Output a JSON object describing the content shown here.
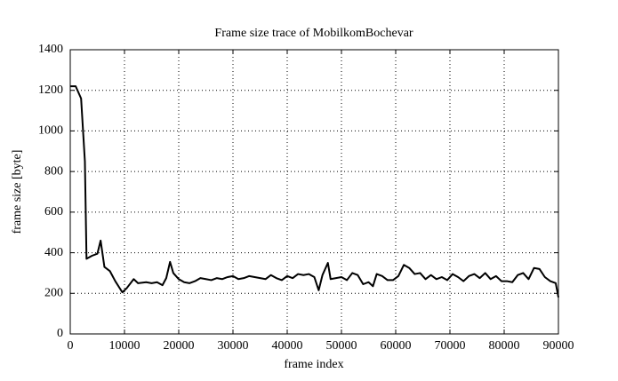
{
  "chart_data": {
    "type": "line",
    "title": "Frame size trace of MobilkomBochevar",
    "xlabel": "frame index",
    "ylabel": "frame size [byte]",
    "x": [
      0,
      1000,
      2000,
      2700,
      3000,
      4000,
      5000,
      5600,
      6300,
      7300,
      8300,
      9600,
      10400,
      11700,
      12500,
      14000,
      15000,
      16000,
      17000,
      17700,
      18400,
      19000,
      20000,
      21000,
      22000,
      23000,
      24000,
      25000,
      26000,
      27000,
      28000,
      29000,
      30000,
      31000,
      32000,
      33000,
      34000,
      35000,
      36000,
      37000,
      38000,
      39000,
      40000,
      41000,
      42000,
      43000,
      44000,
      45000,
      45800,
      46500,
      47500,
      48000,
      49000,
      50000,
      51000,
      52000,
      53000,
      54000,
      55000,
      55800,
      56500,
      57500,
      58500,
      59500,
      60500,
      61500,
      62500,
      63500,
      64500,
      65500,
      66500,
      67500,
      68500,
      69500,
      70500,
      71500,
      72500,
      73500,
      74500,
      75500,
      76500,
      77500,
      78500,
      79500,
      80500,
      81500,
      82500,
      83500,
      84500,
      85500,
      86500,
      87500,
      88500,
      89500,
      90000
    ],
    "series": [
      {
        "name": "frame size",
        "color": "#000000",
        "values": [
          1220,
          1220,
          1160,
          850,
          370,
          385,
          395,
          460,
          330,
          310,
          260,
          205,
          225,
          270,
          250,
          255,
          250,
          255,
          240,
          275,
          355,
          300,
          270,
          255,
          250,
          260,
          275,
          270,
          265,
          275,
          270,
          280,
          285,
          270,
          275,
          285,
          280,
          275,
          270,
          290,
          275,
          265,
          285,
          275,
          295,
          290,
          295,
          280,
          215,
          290,
          350,
          270,
          275,
          280,
          265,
          300,
          290,
          245,
          255,
          235,
          295,
          285,
          265,
          265,
          285,
          340,
          325,
          295,
          300,
          270,
          290,
          270,
          280,
          265,
          295,
          280,
          260,
          285,
          295,
          275,
          300,
          270,
          285,
          260,
          260,
          255,
          290,
          300,
          270,
          325,
          320,
          280,
          260,
          250,
          180
        ]
      }
    ],
    "xlim": [
      0,
      90000
    ],
    "ylim": [
      0,
      1400
    ],
    "xticks": [
      0,
      10000,
      20000,
      30000,
      40000,
      50000,
      60000,
      70000,
      80000,
      90000
    ],
    "yticks": [
      0,
      200,
      400,
      600,
      800,
      1000,
      1200,
      1400
    ],
    "grid": true
  }
}
